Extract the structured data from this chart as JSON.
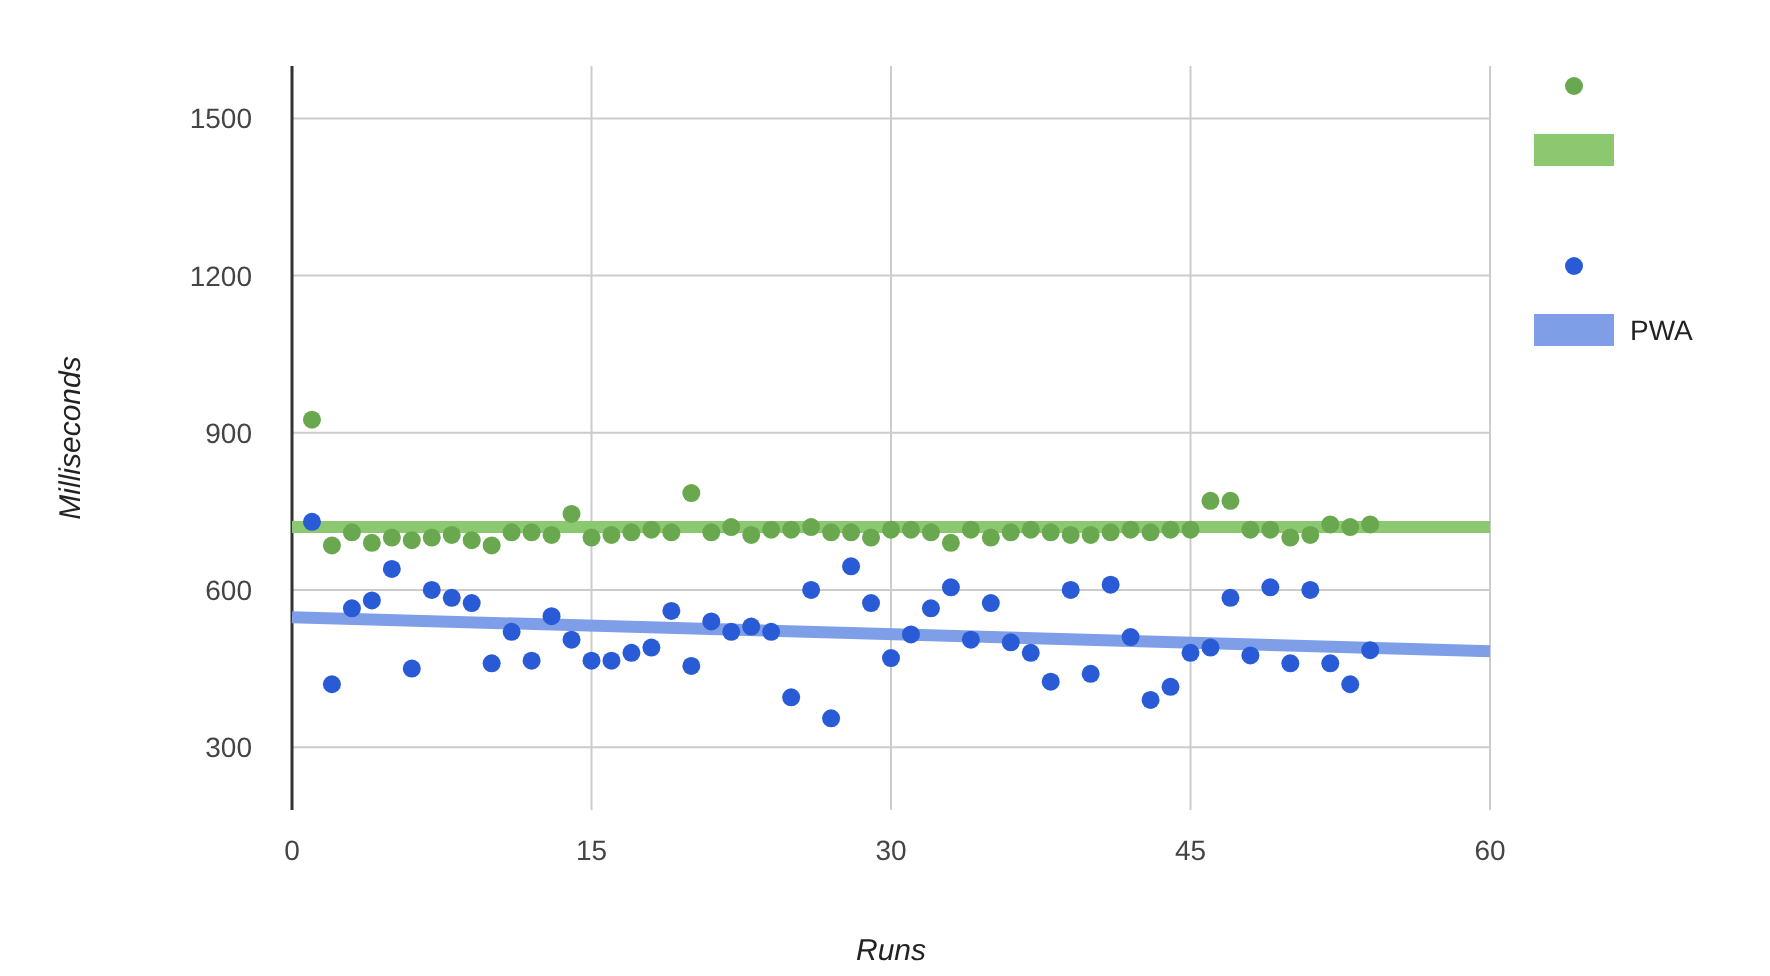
{
  "chart_data": {
    "type": "scatter",
    "xlabel": "Runs",
    "ylabel": "Milliseconds",
    "xlim": [
      0,
      60
    ],
    "xticks": [
      0,
      15,
      30,
      45,
      60
    ],
    "ylim": [
      180,
      1600
    ],
    "yticks": [
      300,
      600,
      900,
      1200,
      1500
    ],
    "grid": true,
    "legend": "right",
    "series": [
      {
        "marker": "circle",
        "color": "#6aa84f",
        "x": [
          1,
          2,
          3,
          4,
          5,
          6,
          7,
          8,
          9,
          10,
          11,
          12,
          13,
          14,
          15,
          16,
          17,
          18,
          19,
          20,
          21,
          22,
          23,
          24,
          25,
          26,
          27,
          28,
          29,
          30,
          31,
          32,
          33,
          34,
          35,
          36,
          37,
          38,
          39,
          40,
          41,
          42,
          43,
          44,
          45,
          46,
          47,
          48,
          49,
          50,
          51,
          52,
          53,
          54
        ],
        "values": [
          925,
          685,
          710,
          690,
          700,
          695,
          700,
          705,
          695,
          685,
          710,
          710,
          705,
          745,
          700,
          705,
          710,
          715,
          710,
          785,
          710,
          720,
          705,
          715,
          715,
          720,
          710,
          710,
          700,
          715,
          715,
          710,
          690,
          715,
          700,
          710,
          715,
          710,
          705,
          705,
          710,
          715,
          710,
          715,
          715,
          770,
          770,
          715,
          715,
          700,
          705,
          725,
          720,
          725
        ]
      },
      {
        "type": "line",
        "color": "#8cc870",
        "x": [
          0,
          60
        ],
        "values": [
          720,
          720
        ]
      },
      {
        "marker": "circle",
        "color": "#2a5bd7",
        "x": [
          1,
          2,
          3,
          4,
          5,
          6,
          7,
          8,
          9,
          10,
          11,
          12,
          13,
          14,
          15,
          16,
          17,
          18,
          19,
          20,
          21,
          22,
          23,
          24,
          25,
          26,
          27,
          28,
          29,
          30,
          31,
          32,
          33,
          34,
          35,
          36,
          37,
          38,
          39,
          40,
          41,
          42,
          43,
          44,
          45,
          46,
          47,
          48,
          49,
          50,
          51,
          52,
          53,
          54
        ],
        "values": [
          730,
          420,
          565,
          580,
          640,
          450,
          600,
          585,
          575,
          460,
          520,
          465,
          550,
          505,
          465,
          465,
          480,
          490,
          560,
          455,
          540,
          520,
          530,
          520,
          395,
          600,
          355,
          645,
          575,
          470,
          515,
          565,
          605,
          505,
          575,
          500,
          480,
          425,
          600,
          440,
          610,
          510,
          390,
          415,
          480,
          490,
          585,
          475,
          605,
          460,
          600,
          460,
          420,
          485
        ]
      },
      {
        "type": "line",
        "name": "PWA",
        "color": "#7f9ee8",
        "x": [
          0,
          60
        ],
        "values": [
          548,
          483
        ]
      }
    ]
  }
}
